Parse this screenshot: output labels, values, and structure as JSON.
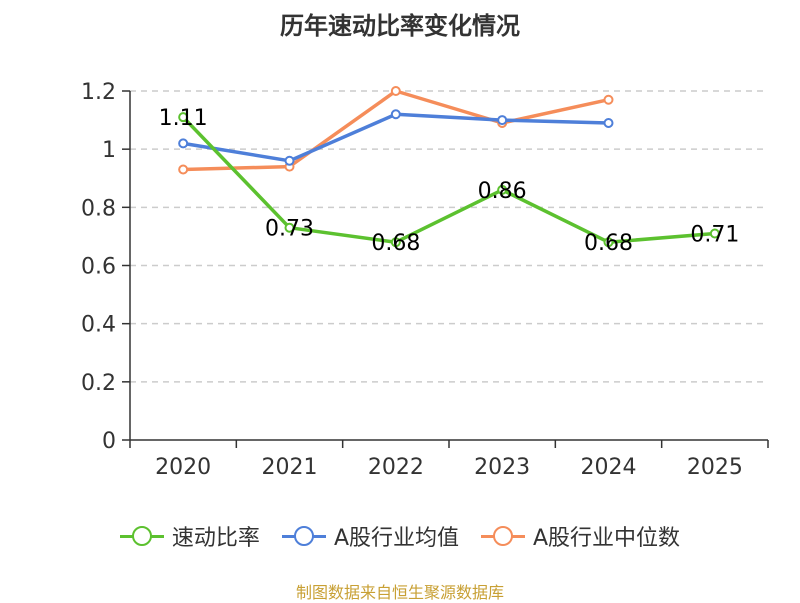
{
  "chart_data": {
    "type": "line",
    "title": "历年速动比率变化情况",
    "categories": [
      "2020",
      "2021",
      "2022",
      "2023",
      "2024",
      "2025"
    ],
    "ylim": [
      0,
      1.2
    ],
    "yticks": [
      "0",
      "0.2",
      "0.4",
      "0.6",
      "0.8",
      "1",
      "1.2"
    ],
    "grid": true,
    "legend_position": "bottom",
    "series": [
      {
        "name": "速动比率",
        "color": "#5cc12f",
        "values": [
          1.11,
          0.73,
          0.68,
          0.86,
          0.68,
          0.71
        ],
        "labels": [
          "1.11",
          "0.73",
          "0.68",
          "0.86",
          "0.68",
          "0.71"
        ]
      },
      {
        "name": "A股行业均值",
        "color": "#4e7fd9",
        "values": [
          1.02,
          0.96,
          1.12,
          1.1,
          1.09,
          null
        ]
      },
      {
        "name": "A股行业中位数",
        "color": "#f58d5a",
        "values": [
          0.93,
          0.94,
          1.2,
          1.09,
          1.17,
          null
        ]
      }
    ],
    "source": "制图数据来自恒生聚源数据库"
  }
}
